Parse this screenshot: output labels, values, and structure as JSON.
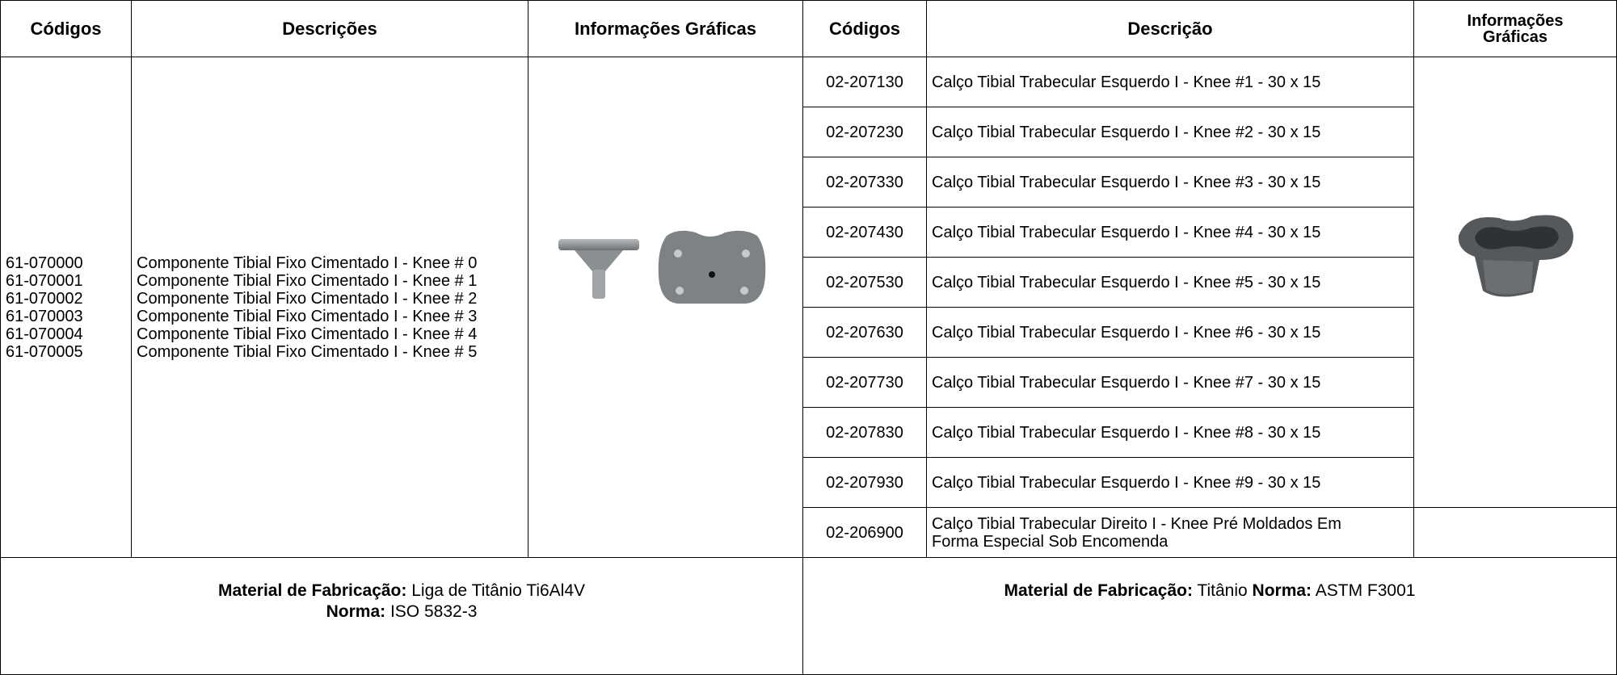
{
  "table": {
    "headers": [
      "Códigos",
      "Descrições",
      "Informações Gráficas",
      "Códigos",
      "Descrição",
      "Informações Gráficas"
    ],
    "left_codes": [
      "61-070000",
      "61-070001",
      "61-070002",
      "61-070003",
      "61-070004",
      "61-070005"
    ],
    "left_descriptions": [
      "Componente Tibial Fixo Cimentado I - Knee # 0",
      "Componente Tibial Fixo Cimentado I - Knee # 1",
      "Componente Tibial Fixo Cimentado I - Knee # 2",
      "Componente Tibial Fixo Cimentado I - Knee # 3",
      "Componente Tibial Fixo Cimentado I - Knee # 4",
      "Componente Tibial Fixo Cimentado I - Knee # 5"
    ],
    "right_rows": [
      {
        "code": "02-207130",
        "description": "Calço Tibial Trabecular Esquerdo I - Knee #1 - 30 x 15"
      },
      {
        "code": "02-207230",
        "description": "Calço Tibial Trabecular Esquerdo I - Knee #2 - 30 x 15"
      },
      {
        "code": "02-207330",
        "description": "Calço Tibial Trabecular Esquerdo I - Knee #3 - 30 x 15"
      },
      {
        "code": "02-207430",
        "description": "Calço Tibial Trabecular Esquerdo I - Knee #4 - 30 x 15"
      },
      {
        "code": "02-207530",
        "description": "Calço Tibial Trabecular Esquerdo I - Knee #5 - 30 x 15"
      },
      {
        "code": "02-207630",
        "description": "Calço Tibial Trabecular Esquerdo I - Knee #6 - 30 x 15"
      },
      {
        "code": "02-207730",
        "description": "Calço Tibial Trabecular Esquerdo I - Knee #7 - 30 x 15"
      },
      {
        "code": "02-207830",
        "description": "Calço Tibial Trabecular Esquerdo I - Knee #8 - 30 x 15"
      },
      {
        "code": "02-207930",
        "description": "Calço Tibial Trabecular Esquerdo I - Knee #9 - 30 x 15"
      },
      {
        "code": "02-206900",
        "description": "Calço Tibial Trabecular Direito I - Knee Pré Moldados Em Forma Especial Sob Encomenda"
      }
    ],
    "footer_left": {
      "label1": "Material de Fabricação:",
      "value1": "Liga de Titânio Ti6Al4V",
      "label2": "Norma:",
      "value2": "ISO 5832-3"
    },
    "footer_right": {
      "label1": "Material de Fabricação:",
      "value1": "Titânio",
      "label2": "Norma:",
      "value2": "ASTM F3001"
    }
  }
}
